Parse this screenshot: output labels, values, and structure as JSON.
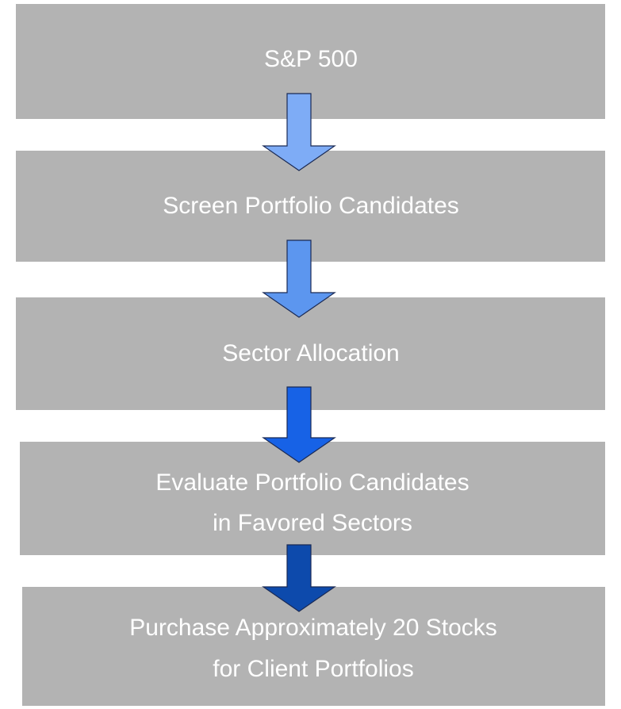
{
  "steps": [
    {
      "lines": [
        "S&P 500"
      ]
    },
    {
      "lines": [
        "Screen Portfolio Candidates"
      ]
    },
    {
      "lines": [
        "Sector Allocation"
      ]
    },
    {
      "lines": [
        "Evaluate Portfolio Candidates",
        "in Favored Sectors"
      ]
    },
    {
      "lines": [
        "Purchase Approximately 20 Stocks",
        "for Client Portfolios"
      ]
    }
  ]
}
